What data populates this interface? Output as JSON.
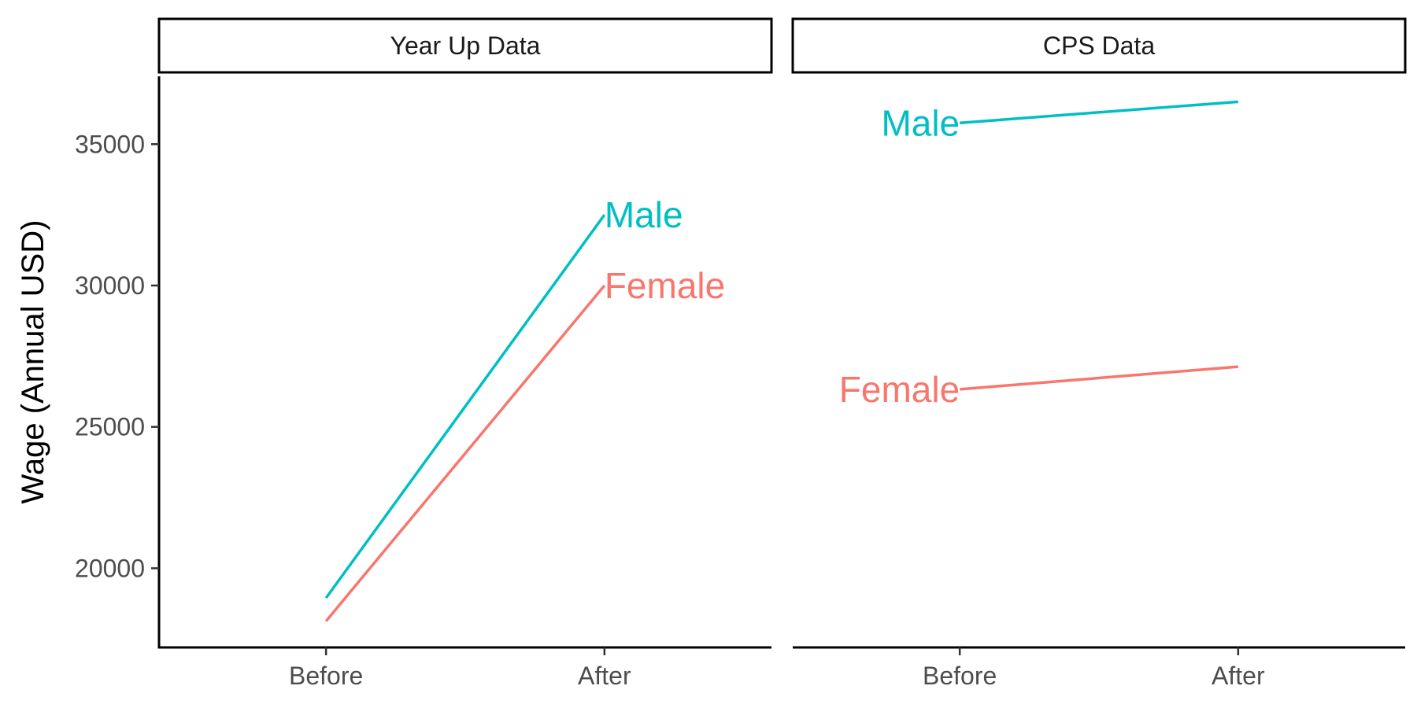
{
  "chart_data": {
    "type": "line",
    "ylabel": "Wage (Annual USD)",
    "xlabel": "",
    "categories": [
      "Before",
      "After"
    ],
    "y_ticks": [
      20000,
      25000,
      30000,
      35000
    ],
    "y_tick_labels": [
      "20000",
      "25000",
      "30000",
      "35000"
    ],
    "ylim": [
      17200,
      37400
    ],
    "grid": false,
    "legend": "none (direct labels on lines)",
    "colors": {
      "Male": "#00BFC4",
      "Female": "#F8766D"
    },
    "panels": [
      {
        "title": "Year Up Data",
        "label_side": "end",
        "series": [
          {
            "name": "Male",
            "values": [
              18950,
              32500
            ]
          },
          {
            "name": "Female",
            "values": [
              18130,
              30000
            ]
          }
        ]
      },
      {
        "title": "CPS Data",
        "label_side": "start",
        "series": [
          {
            "name": "Male",
            "values": [
              35750,
              36500
            ]
          },
          {
            "name": "Female",
            "values": [
              26330,
              27130
            ]
          }
        ]
      }
    ]
  }
}
